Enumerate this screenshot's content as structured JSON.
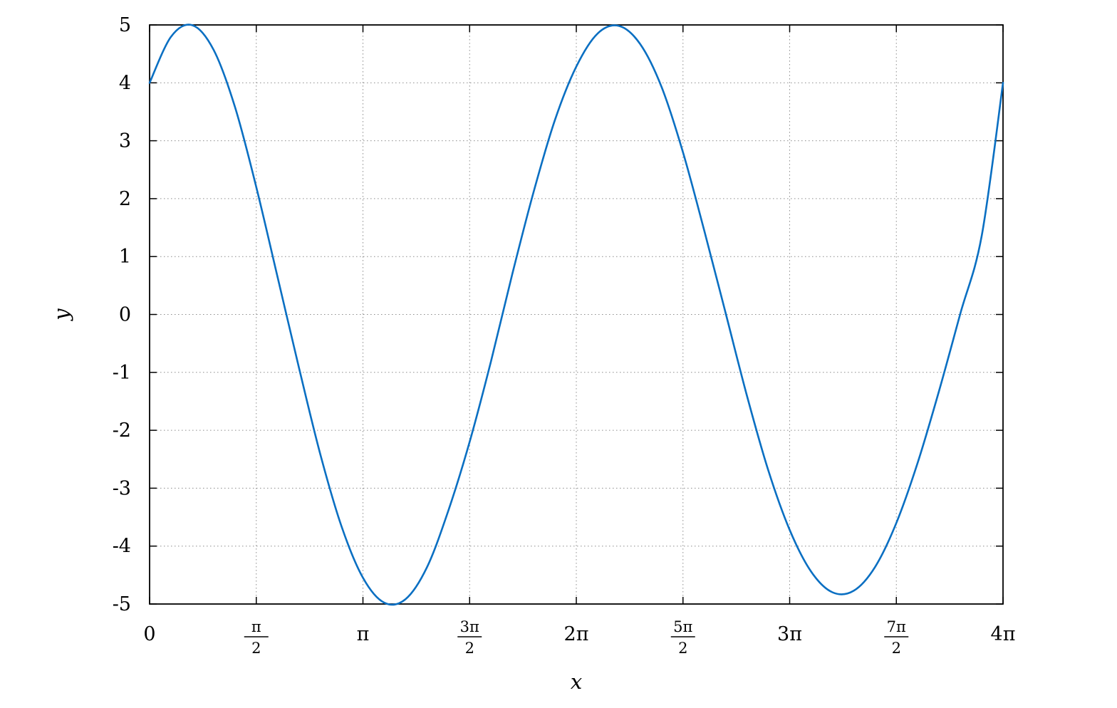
{
  "chart_data": {
    "type": "line",
    "title": "",
    "xlabel": "x",
    "ylabel": "y",
    "xlim": [
      0,
      12.566370614359172
    ],
    "ylim": [
      -5,
      5
    ],
    "grid": true,
    "line_color": "#0a6fc2",
    "x_ticks": [
      {
        "value": 0,
        "label": "0"
      },
      {
        "value": 1.5707963267948966,
        "label": "π/2",
        "numerator": "π",
        "denominator": "2"
      },
      {
        "value": 3.141592653589793,
        "label": "π"
      },
      {
        "value": 4.71238898038469,
        "label": "3π/2",
        "numerator": "3π",
        "denominator": "2"
      },
      {
        "value": 6.283185307179586,
        "label": "2π"
      },
      {
        "value": 7.853981633974483,
        "label": "5π/2",
        "numerator": "5π",
        "denominator": "2"
      },
      {
        "value": 9.42477796076938,
        "label": "3π"
      },
      {
        "value": 10.995574287564276,
        "label": "7π/2",
        "numerator": "7π",
        "denominator": "2"
      },
      {
        "value": 12.566370614359172,
        "label": "4π"
      }
    ],
    "y_ticks": [
      {
        "value": 5,
        "label": "5"
      },
      {
        "value": 4,
        "label": "4"
      },
      {
        "value": 3,
        "label": "3"
      },
      {
        "value": 2,
        "label": "2"
      },
      {
        "value": 1,
        "label": "1"
      },
      {
        "value": 0,
        "label": "0"
      },
      {
        "value": -1,
        "label": "-1"
      },
      {
        "value": -2,
        "label": "-2"
      },
      {
        "value": -3,
        "label": "-3"
      },
      {
        "value": -4,
        "label": "-4"
      },
      {
        "value": -5,
        "label": "-5"
      }
    ],
    "series": [
      {
        "x": [
          0,
          0.3142,
          0.6283,
          0.9425,
          1.2566,
          1.5708,
          1.885,
          2.1991,
          2.5133,
          2.8274,
          3.1416,
          3.4558,
          3.7699,
          4.0841,
          4.3982,
          4.7124,
          5.0265,
          5.3407,
          5.6549,
          5.969,
          6.2832,
          6.5973,
          6.9115,
          7.2257,
          7.5398,
          7.854,
          8.1681,
          8.4823,
          8.7965,
          9.1106,
          9.4248,
          9.7389,
          10.0531,
          10.3673,
          10.6814,
          10.9956,
          11.3097,
          11.6239,
          11.9381,
          12.2522,
          12.5664
        ],
        "y": [
          4,
          4.794,
          4.996,
          4.57,
          3.585,
          2.2,
          0.643,
          -0.919,
          -2.413,
          -3.664,
          -4.547,
          -4.978,
          -4.915,
          -4.366,
          -3.39,
          -2.2,
          -0.811,
          0.699,
          2.118,
          3.36,
          4.281,
          4.852,
          4.983,
          4.666,
          3.925,
          2.8,
          1.444,
          0.023,
          -1.407,
          -2.694,
          -3.72,
          -4.437,
          -4.797,
          -4.771,
          -4.362,
          -3.6,
          -2.56,
          -1.322,
          0.016,
          1.356,
          4
        ]
      }
    ]
  }
}
